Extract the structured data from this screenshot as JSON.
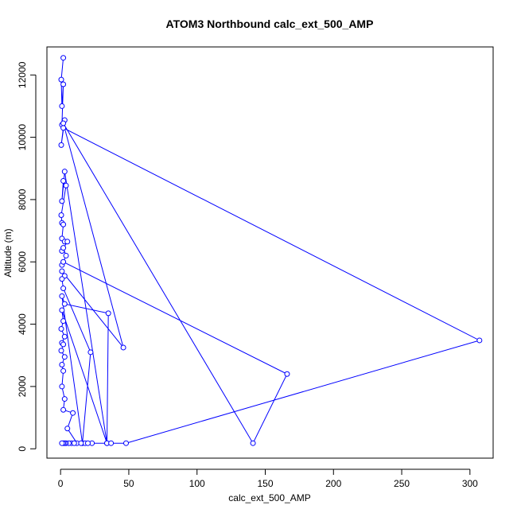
{
  "chart_data": {
    "type": "line",
    "title": "ATOM3 Northbound calc_ext_500_AMP",
    "xlabel": "calc_ext_500_AMP",
    "ylabel": "Altitude (m)",
    "xlim": [
      -10,
      317
    ],
    "ylim": [
      -300,
      12900
    ],
    "xticks": [
      0,
      50,
      100,
      150,
      200,
      250,
      300
    ],
    "yticks": [
      0,
      2000,
      4000,
      6000,
      8000,
      10000,
      12000
    ],
    "grid": false,
    "series_color": "#0000ff",
    "series": [
      {
        "markers": "open-circle",
        "points": [
          [
            2,
            12550
          ],
          [
            0.5,
            11850
          ],
          [
            1,
            11000
          ],
          [
            2,
            11700
          ],
          [
            1,
            10400
          ],
          [
            3,
            10550
          ],
          [
            0.5,
            9750
          ],
          [
            2,
            10300
          ],
          [
            307,
            3480
          ],
          [
            48,
            180
          ],
          [
            34,
            180
          ],
          [
            3,
            8900
          ],
          [
            1,
            7950
          ],
          [
            2,
            8600
          ],
          [
            4,
            8450
          ],
          [
            0.5,
            7500
          ],
          [
            1,
            7250
          ],
          [
            2,
            7200
          ],
          [
            1,
            6750
          ],
          [
            3,
            6650
          ],
          [
            5,
            6650
          ],
          [
            1,
            6350
          ],
          [
            2,
            6450
          ],
          [
            4,
            6200
          ],
          [
            1,
            5900
          ],
          [
            2,
            6000
          ],
          [
            166,
            2400
          ],
          [
            141,
            180
          ],
          [
            2,
            10450
          ],
          [
            46,
            3250
          ],
          [
            1,
            5700
          ],
          [
            3,
            5550
          ],
          [
            1,
            5450
          ],
          [
            2,
            5150
          ],
          [
            22,
            3100
          ],
          [
            16,
            180
          ],
          [
            1,
            4900
          ],
          [
            3,
            4650
          ],
          [
            35,
            4350
          ],
          [
            34,
            180
          ],
          [
            1,
            4450
          ],
          [
            2,
            4100
          ],
          [
            0.5,
            3850
          ],
          [
            3,
            3600
          ],
          [
            1,
            3400
          ],
          [
            2,
            3350
          ],
          [
            0.5,
            3150
          ],
          [
            3,
            2950
          ],
          [
            1,
            2700
          ],
          [
            2,
            2500
          ],
          [
            1,
            2000
          ],
          [
            3,
            1600
          ],
          [
            2,
            1250
          ],
          [
            9,
            1150
          ],
          [
            5,
            650
          ],
          [
            12,
            180
          ],
          [
            18,
            180
          ],
          [
            23,
            180
          ],
          [
            37,
            180
          ],
          [
            15,
            180
          ],
          [
            8,
            180
          ],
          [
            6,
            180
          ],
          [
            4,
            180
          ],
          [
            3,
            180
          ],
          [
            2,
            180
          ],
          [
            1,
            180
          ],
          [
            20,
            180
          ],
          [
            10,
            180
          ]
        ]
      }
    ]
  }
}
